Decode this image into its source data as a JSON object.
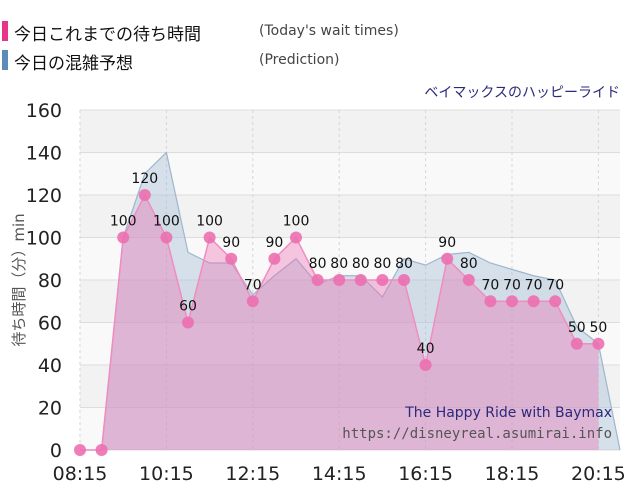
{
  "legend": {
    "actual_label": "今日これまでの待ち時間",
    "actual_sub": "(Today's wait times)",
    "actual_color": "#e8358c",
    "predict_label": "今日の混雑予想",
    "predict_sub": "(Prediction)",
    "predict_color": "#5b8db8"
  },
  "site_tag": "ベイマックスのハッピーライド",
  "watermark": {
    "line1": "The Happy Ride with Baymax",
    "line2": "https://disneyreal.asumirai.info"
  },
  "chart_data": {
    "type": "area",
    "ylabel": "待ち時間（分）min",
    "ylim": [
      0,
      160
    ],
    "yticks": [
      0,
      20,
      40,
      60,
      80,
      100,
      120,
      140,
      160
    ],
    "xlim": [
      "08:15",
      "20:45"
    ],
    "xticks": [
      "08:15",
      "10:15",
      "12:15",
      "14:15",
      "16:15",
      "18:15",
      "20:15"
    ],
    "grid": true,
    "series": [
      {
        "name": "今日の混雑予想",
        "x": [
          "08:15",
          "08:45",
          "09:15",
          "09:45",
          "10:15",
          "10:45",
          "11:15",
          "11:45",
          "12:15",
          "12:45",
          "13:15",
          "13:45",
          "14:15",
          "14:45",
          "15:15",
          "15:45",
          "16:15",
          "16:45",
          "17:15",
          "17:45",
          "18:15",
          "18:45",
          "19:15",
          "19:45",
          "20:15",
          "20:45"
        ],
        "values": [
          0,
          0,
          100,
          130,
          140,
          93,
          88,
          88,
          73,
          82,
          90,
          78,
          82,
          82,
          72,
          90,
          87,
          92,
          93,
          88,
          85,
          82,
          80,
          58,
          50,
          0
        ]
      },
      {
        "name": "今日これまでの待ち時間",
        "x": [
          "08:15",
          "08:45",
          "09:15",
          "09:45",
          "10:15",
          "10:45",
          "11:15",
          "11:45",
          "12:15",
          "12:45",
          "13:15",
          "13:45",
          "14:15",
          "14:45",
          "15:15",
          "15:45",
          "16:15",
          "16:45",
          "17:15",
          "17:45",
          "18:15",
          "18:45",
          "19:15",
          "19:45",
          "20:15"
        ],
        "values": [
          0,
          0,
          100,
          120,
          100,
          60,
          100,
          90,
          70,
          90,
          100,
          80,
          80,
          80,
          80,
          80,
          40,
          90,
          80,
          70,
          70,
          70,
          70,
          50,
          50
        ],
        "labels": [
          "",
          "",
          "100",
          "120",
          "100",
          "60",
          "100",
          "90",
          "70",
          "90",
          "100",
          "80",
          "80",
          "80",
          "80",
          "80",
          "40",
          "90",
          "80",
          "70",
          "70",
          "70",
          "70",
          "50",
          "50"
        ]
      }
    ]
  }
}
